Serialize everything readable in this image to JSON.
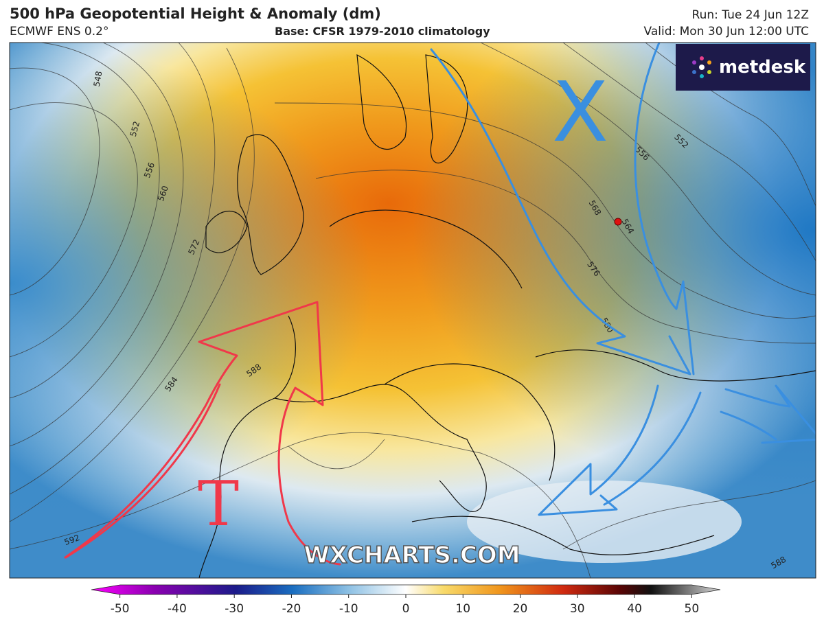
{
  "header": {
    "title": "500 hPa Geopotential Height & Anomaly (dm)",
    "model": "ECMWF ENS 0.2°",
    "base": "Base: CFSR 1979-2010 climatology",
    "run": "Run: Tue 24 Jun 12Z",
    "valid": "Valid: Mon 30 Jun 12:00 UTC"
  },
  "logo": "metdesk",
  "watermark": "WXCHARTS.COM",
  "contour_labels": [
    548,
    552,
    556,
    560,
    572,
    584,
    588,
    592,
    568,
    564,
    576,
    580,
    556,
    552,
    588
  ],
  "annotations": [
    "T",
    "X"
  ],
  "colorbar": {
    "lim": [
      -55,
      55
    ],
    "ticks": [
      -50,
      -40,
      -30,
      -20,
      -10,
      0,
      10,
      20,
      30,
      40,
      50
    ]
  }
}
